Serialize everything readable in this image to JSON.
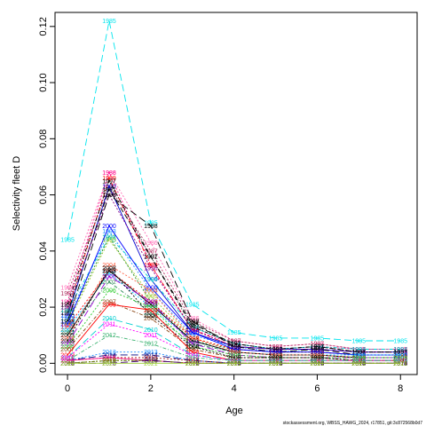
{
  "chart_data": {
    "type": "line",
    "xlabel": "Age",
    "ylabel": "Selectivity fleet D",
    "xlim": [
      -0.3,
      8.4
    ],
    "ylim": [
      -0.004,
      0.125
    ],
    "x_ticks": [
      0,
      2,
      4,
      6,
      8
    ],
    "y_ticks": [
      0.0,
      0.02,
      0.04,
      0.06,
      0.08,
      0.1,
      0.12
    ],
    "y_tick_labels": [
      "0.00",
      "0.02",
      "0.04",
      "0.06",
      "0.08",
      "0.10",
      "0.12"
    ],
    "grid": false,
    "legend": "none",
    "credit": "stockassessment.org, WBSS_HAWG_2024, r17851, git:3c872568b0d7",
    "ages": [
      0,
      1,
      2,
      3,
      4,
      5,
      6,
      7,
      8
    ],
    "series": [
      {
        "name": "1985",
        "color": "#00e5ee",
        "dash": "8,4",
        "values": [
          0.044,
          0.122,
          0.05,
          0.021,
          0.011,
          0.009,
          0.009,
          0.008,
          0.008
        ]
      },
      {
        "name": "1986",
        "color": "#ff69b4",
        "dash": "2,2",
        "values": [
          0.027,
          0.068,
          0.043,
          0.016,
          0.008,
          0.006,
          0.007,
          0.005,
          0.005
        ]
      },
      {
        "name": "1987",
        "color": "#b03060",
        "dash": "2,2",
        "values": [
          0.025,
          0.063,
          0.04,
          0.015,
          0.008,
          0.006,
          0.007,
          0.005,
          0.005
        ]
      },
      {
        "name": "1988",
        "color": "#ff1493",
        "dash": "2,2",
        "values": [
          0.022,
          0.068,
          0.035,
          0.012,
          0.007,
          0.005,
          0.006,
          0.005,
          0.005
        ]
      },
      {
        "name": "1989",
        "color": "#ff0000",
        "dash": "4,2,1,2",
        "values": [
          0.019,
          0.066,
          0.035,
          0.012,
          0.006,
          0.005,
          0.005,
          0.004,
          0.004
        ]
      },
      {
        "name": "1990",
        "color": "#0000cd",
        "dash": "",
        "values": [
          0.017,
          0.063,
          0.03,
          0.011,
          0.006,
          0.005,
          0.005,
          0.004,
          0.004
        ]
      },
      {
        "name": "1991",
        "color": "#000000",
        "dash": "6,3",
        "values": [
          0.018,
          0.062,
          0.038,
          0.014,
          0.007,
          0.005,
          0.006,
          0.004,
          0.004
        ]
      },
      {
        "name": "1992",
        "color": "#228b22",
        "dash": "2,2",
        "values": [
          0.015,
          0.045,
          0.022,
          0.008,
          0.005,
          0.004,
          0.004,
          0.003,
          0.003
        ]
      },
      {
        "name": "1993",
        "color": "#1e90ff",
        "dash": "2,2",
        "values": [
          0.016,
          0.047,
          0.026,
          0.01,
          0.006,
          0.004,
          0.005,
          0.004,
          0.004
        ]
      },
      {
        "name": "1994",
        "color": "#00ced1",
        "dash": "4,2,1,2",
        "values": [
          0.019,
          0.045,
          0.03,
          0.013,
          0.007,
          0.005,
          0.006,
          0.005,
          0.005
        ]
      },
      {
        "name": "1995",
        "color": "#9acd32",
        "dash": "2,2",
        "values": [
          0.014,
          0.044,
          0.024,
          0.009,
          0.005,
          0.004,
          0.004,
          0.003,
          0.003
        ]
      },
      {
        "name": "1996",
        "color": "#8b008b",
        "dash": "2,2",
        "values": [
          0.02,
          0.06,
          0.034,
          0.012,
          0.006,
          0.005,
          0.005,
          0.004,
          0.004
        ]
      },
      {
        "name": "1997",
        "color": "#000000",
        "dash": "4,2,1,2",
        "values": [
          0.021,
          0.065,
          0.038,
          0.013,
          0.007,
          0.005,
          0.006,
          0.004,
          0.004
        ]
      },
      {
        "name": "1998",
        "color": "#000000",
        "dash": "8,4",
        "values": [
          0.015,
          0.06,
          0.049,
          0.015,
          0.006,
          0.004,
          0.005,
          0.003,
          0.003
        ]
      },
      {
        "name": "1999",
        "color": "#ff0000",
        "dash": "2,2",
        "values": [
          0.013,
          0.033,
          0.022,
          0.009,
          0.005,
          0.004,
          0.004,
          0.003,
          0.003
        ]
      },
      {
        "name": "2000",
        "color": "#0000ff",
        "dash": "",
        "values": [
          0.014,
          0.049,
          0.027,
          0.011,
          0.005,
          0.004,
          0.004,
          0.003,
          0.003
        ]
      },
      {
        "name": "2001",
        "color": "#00bfff",
        "dash": "2,2",
        "values": [
          0.012,
          0.032,
          0.02,
          0.008,
          0.004,
          0.003,
          0.003,
          0.003,
          0.003
        ]
      },
      {
        "name": "2002",
        "color": "#2e8b57",
        "dash": "4,2,1,2",
        "values": [
          0.011,
          0.029,
          0.018,
          0.007,
          0.004,
          0.003,
          0.003,
          0.002,
          0.002
        ]
      },
      {
        "name": "2003",
        "color": "#000000",
        "dash": "",
        "values": [
          0.01,
          0.033,
          0.021,
          0.008,
          0.004,
          0.003,
          0.003,
          0.002,
          0.002
        ]
      },
      {
        "name": "2004",
        "color": "#ff6347",
        "dash": "2,2",
        "values": [
          0.009,
          0.035,
          0.026,
          0.009,
          0.004,
          0.003,
          0.003,
          0.002,
          0.002
        ]
      },
      {
        "name": "2005",
        "color": "#9400d3",
        "dash": "8,4",
        "values": [
          0.007,
          0.031,
          0.022,
          0.007,
          0.003,
          0.002,
          0.002,
          0.002,
          0.002
        ]
      },
      {
        "name": "2006",
        "color": "#32cd32",
        "dash": "2,2",
        "values": [
          0.006,
          0.026,
          0.02,
          0.006,
          0.003,
          0.002,
          0.002,
          0.002,
          0.002
        ]
      },
      {
        "name": "2007",
        "color": "#8b4513",
        "dash": "4,2,1,2",
        "values": [
          0.005,
          0.022,
          0.016,
          0.005,
          0.002,
          0.002,
          0.002,
          0.001,
          0.001
        ]
      },
      {
        "name": "2008",
        "color": "#000000",
        "dash": "2,2",
        "values": [
          0.008,
          0.034,
          0.017,
          0.006,
          0.002,
          0.002,
          0.002,
          0.001,
          0.001
        ]
      },
      {
        "name": "2009",
        "color": "#ff0000",
        "dash": "",
        "values": [
          0.003,
          0.021,
          0.019,
          0.004,
          0.001,
          0.001,
          0.001,
          0.001,
          0.001
        ]
      },
      {
        "name": "2010",
        "color": "#00ced1",
        "dash": "8,4",
        "values": [
          0.002,
          0.016,
          0.012,
          0.003,
          0.001,
          0.001,
          0.001,
          0.001,
          0.001
        ]
      },
      {
        "name": "2011",
        "color": "#ff00ff",
        "dash": "2,2",
        "values": [
          0.002,
          0.014,
          0.01,
          0.003,
          0.001,
          0.001,
          0.001,
          0.001,
          0.001
        ]
      },
      {
        "name": "2012",
        "color": "#3cb371",
        "dash": "4,2,1,2",
        "values": [
          0.001,
          0.01,
          0.007,
          0.002,
          0.001,
          0.001,
          0.001,
          0.001,
          0.001
        ]
      },
      {
        "name": "2013",
        "color": "#1e90ff",
        "dash": "2,2",
        "values": [
          0.001,
          0.004,
          0.004,
          0.001,
          0.0,
          0.0,
          0.0,
          0.0,
          0.0
        ]
      },
      {
        "name": "2014",
        "color": "#000080",
        "dash": "8,4",
        "values": [
          0.001,
          0.003,
          0.003,
          0.001,
          0.0,
          0.0,
          0.0,
          0.0,
          0.0
        ]
      },
      {
        "name": "2015",
        "color": "#b22222",
        "dash": "2,2",
        "values": [
          0.001,
          0.002,
          0.002,
          0.001,
          0.0,
          0.0,
          0.0,
          0.0,
          0.0
        ]
      },
      {
        "name": "2016",
        "color": "#ff1493",
        "dash": "",
        "values": [
          0.001,
          0.002,
          0.001,
          0.0,
          0.0,
          0.0,
          0.0,
          0.0,
          0.0
        ]
      },
      {
        "name": "2017",
        "color": "#006400",
        "dash": "2,2",
        "values": [
          0.0,
          0.001,
          0.001,
          0.0,
          0.0,
          0.0,
          0.0,
          0.0,
          0.0
        ]
      },
      {
        "name": "2018",
        "color": "#556b2f",
        "dash": "4,2,1,2",
        "values": [
          0.0,
          0.001,
          0.001,
          0.0,
          0.0,
          0.0,
          0.0,
          0.0,
          0.0
        ]
      },
      {
        "name": "2019",
        "color": "#808000",
        "dash": "2,2",
        "values": [
          0.0,
          0.001,
          0.001,
          0.0,
          0.0,
          0.0,
          0.0,
          0.0,
          0.0
        ]
      },
      {
        "name": "2020",
        "color": "#4b0082",
        "dash": "8,4",
        "values": [
          0.0,
          0.0,
          0.001,
          0.0,
          0.0,
          0.0,
          0.0,
          0.0,
          0.0
        ]
      },
      {
        "name": "2021",
        "color": "#9acd32",
        "dash": "",
        "values": [
          0.0,
          0.0,
          0.0,
          0.0,
          0.0,
          0.0,
          0.0,
          0.0,
          0.0
        ]
      }
    ]
  }
}
